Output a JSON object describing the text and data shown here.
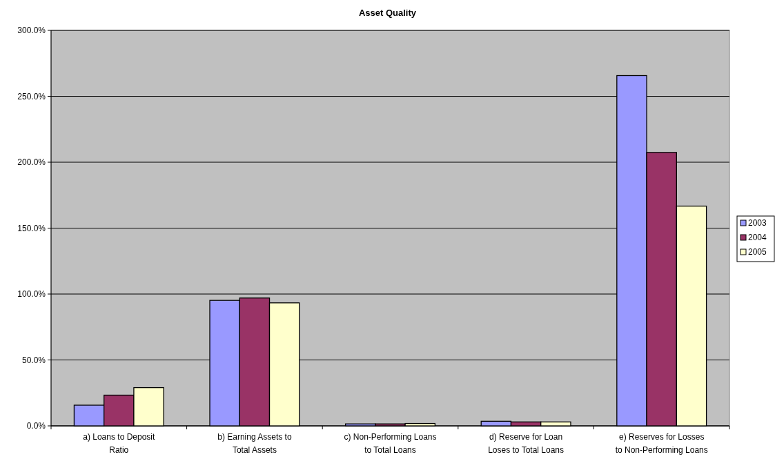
{
  "chart_data": {
    "type": "bar",
    "title": "Asset Quality",
    "categories": [
      "a) Loans to Deposit Ratio",
      "b) Earning Assets to Total Assets",
      "c) Non-Performing Loans to Total Loans",
      "d) Reserve for Loan Loses to Total Loans",
      "e) Reserves for Losses to Non-Performing Loans"
    ],
    "series": [
      {
        "name": "2003",
        "color": "#9999ff",
        "values": [
          15.7,
          95.2,
          1.5,
          3.5,
          265.7
        ]
      },
      {
        "name": "2004",
        "color": "#993366",
        "values": [
          23.3,
          97.0,
          1.5,
          3.0,
          207.4
        ]
      },
      {
        "name": "2005",
        "color": "#ffffcc",
        "values": [
          29.0,
          93.3,
          1.8,
          3.0,
          166.7
        ]
      }
    ],
    "ylim": [
      0,
      300
    ],
    "yticks": [
      {
        "value": 0,
        "label": "0.0%"
      },
      {
        "value": 50,
        "label": "50.0%"
      },
      {
        "value": 100,
        "label": "100.0%"
      },
      {
        "value": 150,
        "label": "150.0%"
      },
      {
        "value": 200,
        "label": "200.0%"
      },
      {
        "value": 250,
        "label": "250.0%"
      },
      {
        "value": 300,
        "label": "300.0%"
      }
    ],
    "grid": "y",
    "legend": "right"
  }
}
